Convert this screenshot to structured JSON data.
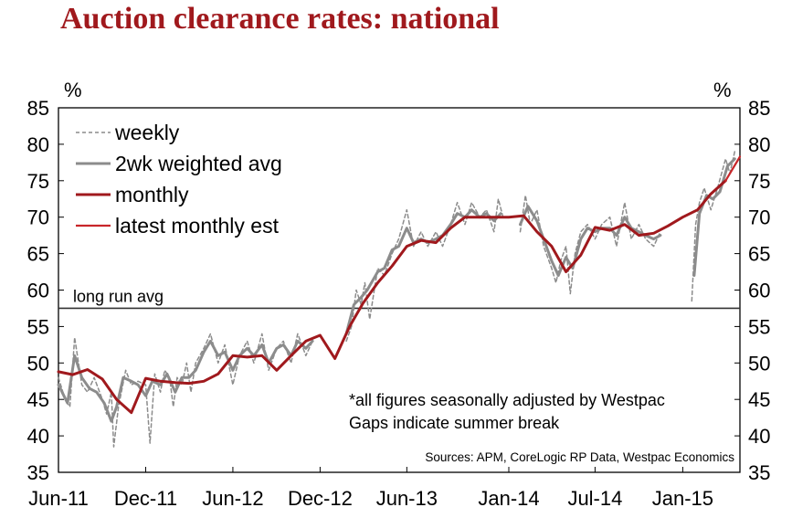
{
  "title": "Auction clearance rates: national",
  "chart_data": {
    "type": "line",
    "title": "Auction clearance rates: national",
    "y_unit_left": "%",
    "y_unit_right": "%",
    "ylim": [
      35,
      85
    ],
    "y_ticks": [
      35,
      40,
      45,
      50,
      55,
      60,
      65,
      70,
      75,
      80,
      85
    ],
    "x_ticks": [
      "Jun-11",
      "Dec-11",
      "Jun-12",
      "Dec-12",
      "Jun-13",
      "Jan-14",
      "Jul-14",
      "Jan-15"
    ],
    "x_tick_dates": [
      "2011-06",
      "2011-12",
      "2012-06",
      "2012-12",
      "2013-06",
      "2014-01",
      "2014-07",
      "2015-01"
    ],
    "xlim": [
      "2011-06",
      "2015-05"
    ],
    "grid": false,
    "legend_position": "top-left",
    "reference_line": {
      "label": "long run avg",
      "value": 57.5
    },
    "annotations": [
      "*all figures seasonally adjusted by Westpac",
      "Gaps indicate summer break"
    ],
    "source": "Sources: APM, CoreLogic RP Data, Westpac Economics",
    "series": [
      {
        "name": "weekly",
        "style": "dashed",
        "color": "#8c8c8c",
        "segments": [
          [
            [
              "2011-06-01",
              48
            ],
            [
              "2011-06-15",
              45
            ],
            [
              "2011-06-25",
              44
            ],
            [
              "2011-07-05",
              53.5
            ],
            [
              "2011-07-20",
              47
            ],
            [
              "2011-08-01",
              46
            ],
            [
              "2011-08-15",
              48
            ],
            [
              "2011-09-01",
              45
            ],
            [
              "2011-09-10",
              43
            ],
            [
              "2011-09-20",
              46
            ],
            [
              "2011-09-25",
              38.5
            ],
            [
              "2011-10-05",
              44
            ],
            [
              "2011-10-20",
              49
            ],
            [
              "2011-11-01",
              47
            ],
            [
              "2011-11-15",
              47.5
            ],
            [
              "2011-12-01",
              47
            ],
            [
              "2011-12-10",
              39
            ],
            [
              "2011-12-20",
              48.5
            ],
            [
              "2012-01-01",
              46
            ],
            [
              "2012-01-10",
              49
            ],
            [
              "2012-01-20",
              48
            ],
            [
              "2012-01-28",
              44
            ],
            [
              "2012-02-05",
              48
            ],
            [
              "2012-02-15",
              47
            ],
            [
              "2012-02-25",
              50
            ],
            [
              "2012-03-05",
              46
            ],
            [
              "2012-03-15",
              50
            ],
            [
              "2012-04-01",
              52
            ],
            [
              "2012-04-15",
              54
            ],
            [
              "2012-05-01",
              50
            ],
            [
              "2012-05-15",
              52.5
            ],
            [
              "2012-06-01",
              47
            ],
            [
              "2012-06-15",
              51
            ],
            [
              "2012-07-01",
              53
            ],
            [
              "2012-07-15",
              50
            ],
            [
              "2012-08-01",
              54
            ],
            [
              "2012-08-15",
              49
            ],
            [
              "2012-09-01",
              52
            ],
            [
              "2012-09-15",
              53
            ],
            [
              "2012-10-01",
              50
            ],
            [
              "2012-10-15",
              54
            ],
            [
              "2012-11-01",
              51
            ],
            [
              "2012-11-15",
              53
            ]
          ],
          [
            [
              "2013-01-25",
              53
            ],
            [
              "2013-02-05",
              55
            ],
            [
              "2013-02-15",
              60
            ],
            [
              "2013-02-25",
              58
            ],
            [
              "2013-03-05",
              61
            ],
            [
              "2013-03-15",
              56
            ],
            [
              "2013-04-01",
              63
            ],
            [
              "2013-04-15",
              62
            ],
            [
              "2013-05-01",
              65
            ],
            [
              "2013-05-15",
              67
            ],
            [
              "2013-06-01",
              71
            ],
            [
              "2013-06-15",
              66
            ],
            [
              "2013-07-01",
              68
            ],
            [
              "2013-07-15",
              66
            ],
            [
              "2013-08-01",
              68
            ],
            [
              "2013-08-15",
              66
            ],
            [
              "2013-09-01",
              69
            ],
            [
              "2013-09-15",
              72
            ],
            [
              "2013-10-01",
              69
            ],
            [
              "2013-10-15",
              72
            ],
            [
              "2013-11-01",
              70
            ],
            [
              "2013-11-15",
              71
            ],
            [
              "2013-12-01",
              68
            ],
            [
              "2013-12-10",
              72.5
            ],
            [
              "2013-12-20",
              70
            ]
          ],
          [
            [
              "2014-01-25",
              68
            ],
            [
              "2014-02-05",
              73
            ],
            [
              "2014-02-15",
              69
            ],
            [
              "2014-03-01",
              71
            ],
            [
              "2014-03-15",
              66
            ],
            [
              "2014-04-01",
              63
            ],
            [
              "2014-04-10",
              61
            ],
            [
              "2014-04-20",
              64
            ],
            [
              "2014-05-01",
              66
            ],
            [
              "2014-05-10",
              59.5
            ],
            [
              "2014-05-20",
              65
            ],
            [
              "2014-06-01",
              68
            ],
            [
              "2014-06-15",
              69
            ],
            [
              "2014-07-01",
              67
            ],
            [
              "2014-07-15",
              69
            ],
            [
              "2014-08-01",
              70
            ],
            [
              "2014-08-15",
              66
            ],
            [
              "2014-09-01",
              72
            ],
            [
              "2014-09-15",
              67
            ],
            [
              "2014-10-01",
              69
            ],
            [
              "2014-10-15",
              67
            ],
            [
              "2014-11-01",
              66
            ],
            [
              "2014-11-15",
              68
            ]
          ],
          [
            [
              "2015-01-20",
              58.5
            ],
            [
              "2015-01-28",
              69
            ],
            [
              "2015-02-05",
              72
            ],
            [
              "2015-02-15",
              74
            ],
            [
              "2015-03-01",
              71
            ],
            [
              "2015-03-15",
              74
            ],
            [
              "2015-04-01",
              78
            ],
            [
              "2015-04-10",
              76
            ],
            [
              "2015-04-20",
              79
            ]
          ]
        ]
      },
      {
        "name": "2wk weighted avg",
        "style": "solid",
        "color": "#8c8c8c",
        "segments": [
          [
            [
              "2011-06-01",
              47
            ],
            [
              "2011-06-20",
              44.5
            ],
            [
              "2011-07-05",
              51
            ],
            [
              "2011-07-20",
              48
            ],
            [
              "2011-08-05",
              46.5
            ],
            [
              "2011-08-20",
              46
            ],
            [
              "2011-09-05",
              44.5
            ],
            [
              "2011-09-20",
              42
            ],
            [
              "2011-10-01",
              44
            ],
            [
              "2011-10-15",
              48
            ],
            [
              "2011-11-01",
              47.5
            ],
            [
              "2011-11-15",
              47
            ],
            [
              "2011-12-01",
              45.5
            ],
            [
              "2011-12-15",
              47.5
            ],
            [
              "2012-01-01",
              47
            ],
            [
              "2012-01-15",
              48.5
            ],
            [
              "2012-02-01",
              46
            ],
            [
              "2012-02-15",
              48
            ],
            [
              "2012-03-01",
              48
            ],
            [
              "2012-03-15",
              49
            ],
            [
              "2012-04-01",
              51.5
            ],
            [
              "2012-04-15",
              53
            ],
            [
              "2012-05-01",
              51
            ],
            [
              "2012-05-15",
              51.5
            ],
            [
              "2012-06-01",
              49
            ],
            [
              "2012-06-15",
              51
            ],
            [
              "2012-07-01",
              52
            ],
            [
              "2012-07-15",
              51
            ],
            [
              "2012-08-01",
              52.5
            ],
            [
              "2012-08-15",
              50
            ],
            [
              "2012-09-01",
              52
            ],
            [
              "2012-09-15",
              52.5
            ],
            [
              "2012-10-01",
              51
            ],
            [
              "2012-10-15",
              53
            ],
            [
              "2012-11-01",
              52
            ],
            [
              "2012-11-15",
              53
            ]
          ],
          [
            [
              "2013-01-25",
              54
            ],
            [
              "2013-02-10",
              58
            ],
            [
              "2013-02-25",
              59
            ],
            [
              "2013-03-10",
              60
            ],
            [
              "2013-04-01",
              62.5
            ],
            [
              "2013-04-15",
              63
            ],
            [
              "2013-05-01",
              65.5
            ],
            [
              "2013-05-15",
              66
            ],
            [
              "2013-06-01",
              68.5
            ],
            [
              "2013-06-15",
              66.5
            ],
            [
              "2013-07-01",
              67
            ],
            [
              "2013-07-15",
              66.5
            ],
            [
              "2013-08-01",
              67
            ],
            [
              "2013-08-15",
              67.5
            ],
            [
              "2013-09-01",
              69
            ],
            [
              "2013-09-15",
              70.5
            ],
            [
              "2013-10-01",
              70
            ],
            [
              "2013-10-15",
              71
            ],
            [
              "2013-11-01",
              70
            ],
            [
              "2013-11-15",
              70.5
            ],
            [
              "2013-12-01",
              69.5
            ],
            [
              "2013-12-15",
              70.5
            ]
          ],
          [
            [
              "2014-01-25",
              69
            ],
            [
              "2014-02-10",
              71.5
            ],
            [
              "2014-03-01",
              69.5
            ],
            [
              "2014-03-15",
              67
            ],
            [
              "2014-04-01",
              64
            ],
            [
              "2014-04-15",
              62
            ],
            [
              "2014-05-01",
              64.5
            ],
            [
              "2014-05-15",
              63
            ],
            [
              "2014-06-01",
              67
            ],
            [
              "2014-06-15",
              68.5
            ],
            [
              "2014-07-01",
              68
            ],
            [
              "2014-07-15",
              68.5
            ],
            [
              "2014-08-01",
              68.5
            ],
            [
              "2014-08-15",
              67.5
            ],
            [
              "2014-09-01",
              70
            ],
            [
              "2014-09-15",
              68.5
            ],
            [
              "2014-10-01",
              68
            ],
            [
              "2014-10-15",
              67.5
            ],
            [
              "2014-11-01",
              67
            ],
            [
              "2014-11-15",
              67.5
            ]
          ],
          [
            [
              "2015-01-25",
              62
            ],
            [
              "2015-02-05",
              70.5
            ],
            [
              "2015-02-20",
              73
            ],
            [
              "2015-03-05",
              72.5
            ],
            [
              "2015-03-20",
              73.5
            ],
            [
              "2015-04-05",
              77
            ],
            [
              "2015-04-20",
              78
            ]
          ]
        ]
      },
      {
        "name": "monthly",
        "style": "solid",
        "color": "#a0191d",
        "points": [
          [
            "2011-06-01",
            48.8
          ],
          [
            "2011-07-01",
            48.4
          ],
          [
            "2011-08-01",
            49.1
          ],
          [
            "2011-09-01",
            47.8
          ],
          [
            "2011-10-01",
            45
          ],
          [
            "2011-11-01",
            43.2
          ],
          [
            "2011-12-01",
            47.9
          ],
          [
            "2012-01-01",
            47.5
          ],
          [
            "2012-02-01",
            47.3
          ],
          [
            "2012-03-01",
            47.2
          ],
          [
            "2012-04-01",
            47.5
          ],
          [
            "2012-05-01",
            48.5
          ],
          [
            "2012-06-01",
            51
          ],
          [
            "2012-07-01",
            50.8
          ],
          [
            "2012-08-01",
            51
          ],
          [
            "2012-09-01",
            49
          ],
          [
            "2012-10-01",
            51
          ],
          [
            "2012-11-01",
            53
          ],
          [
            "2012-12-01",
            53.8
          ],
          [
            "2013-01-01",
            50.6
          ],
          [
            "2013-02-01",
            55
          ],
          [
            "2013-03-01",
            58.2
          ],
          [
            "2013-04-01",
            61
          ],
          [
            "2013-05-01",
            63.3
          ],
          [
            "2013-06-01",
            66
          ],
          [
            "2013-07-01",
            66.8
          ],
          [
            "2013-08-01",
            66.5
          ],
          [
            "2013-09-01",
            68.5
          ],
          [
            "2013-10-01",
            70
          ],
          [
            "2013-11-01",
            70
          ],
          [
            "2013-12-01",
            70
          ],
          [
            "2014-01-01",
            70
          ],
          [
            "2014-02-01",
            70.2
          ],
          [
            "2014-03-01",
            68
          ],
          [
            "2014-04-01",
            66
          ],
          [
            "2014-05-01",
            62.5
          ],
          [
            "2014-06-01",
            64.8
          ],
          [
            "2014-07-01",
            68.6
          ],
          [
            "2014-08-01",
            68.2
          ],
          [
            "2014-09-01",
            69
          ],
          [
            "2014-10-01",
            67.5
          ],
          [
            "2014-11-01",
            67.8
          ],
          [
            "2014-12-01",
            68.8
          ],
          [
            "2015-01-01",
            70
          ],
          [
            "2015-02-01",
            71
          ],
          [
            "2015-03-01",
            73.2
          ],
          [
            "2015-04-01",
            75
          ]
        ]
      },
      {
        "name": "latest monthly est",
        "style": "solid",
        "color": "#c8262a",
        "points": [
          [
            "2015-04-01",
            75
          ],
          [
            "2015-05-01",
            78.3
          ]
        ]
      }
    ]
  }
}
